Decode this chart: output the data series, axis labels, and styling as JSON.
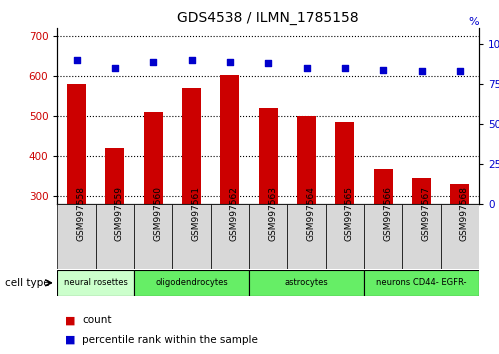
{
  "title": "GDS4538 / ILMN_1785158",
  "samples": [
    "GSM997558",
    "GSM997559",
    "GSM997560",
    "GSM997561",
    "GSM997562",
    "GSM997563",
    "GSM997564",
    "GSM997565",
    "GSM997566",
    "GSM997567",
    "GSM997568"
  ],
  "counts": [
    580,
    420,
    510,
    570,
    602,
    520,
    500,
    485,
    367,
    345,
    330
  ],
  "percentiles": [
    90,
    85,
    89,
    90,
    89,
    88,
    85,
    85,
    84,
    83,
    83
  ],
  "cell_types": [
    {
      "label": "neural rosettes",
      "start": 0,
      "end": 2,
      "color": "#ccffcc"
    },
    {
      "label": "oligodendrocytes",
      "start": 2,
      "end": 5,
      "color": "#66ee66"
    },
    {
      "label": "astrocytes",
      "start": 5,
      "end": 8,
      "color": "#66ee66"
    },
    {
      "label": "neurons CD44- EGFR-",
      "start": 8,
      "end": 11,
      "color": "#66ee66"
    }
  ],
  "ylim_left": [
    280,
    720
  ],
  "ylim_right": [
    0,
    110
  ],
  "yticks_left": [
    300,
    400,
    500,
    600,
    700
  ],
  "yticks_right": [
    0,
    25,
    50,
    75,
    100
  ],
  "bar_color": "#cc0000",
  "dot_color": "#0000cc",
  "bg_color": "#ffffff",
  "plot_bg": "#ffffff",
  "left_label_color": "#cc0000",
  "right_label_color": "#0000cc",
  "xticklabel_bg": "#d8d8d8"
}
